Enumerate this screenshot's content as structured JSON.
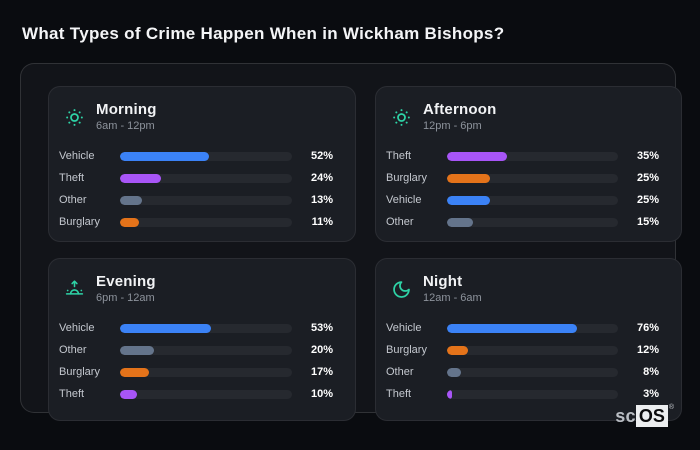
{
  "page": {
    "title": "What Types of Crime Happen When in Wickham Bishops?"
  },
  "colors": {
    "blue": "#3b82f6",
    "purple": "#a855f7",
    "slate": "#64748b",
    "orange": "#e4731a",
    "icon_teal": "#2ed3a6"
  },
  "panels": [
    {
      "title": "Morning",
      "time_range": "6am - 12pm",
      "icon": "sun-dotted-icon",
      "bars": [
        {
          "label": "Vehicle",
          "value": 52,
          "display": "52%",
          "color": "#3b82f6"
        },
        {
          "label": "Theft",
          "value": 24,
          "display": "24%",
          "color": "#a855f7"
        },
        {
          "label": "Other",
          "value": 13,
          "display": "13%",
          "color": "#64748b"
        },
        {
          "label": "Burglary",
          "value": 11,
          "display": "11%",
          "color": "#e4731a"
        }
      ]
    },
    {
      "title": "Afternoon",
      "time_range": "12pm - 6pm",
      "icon": "sun-dotted-icon",
      "bars": [
        {
          "label": "Theft",
          "value": 35,
          "display": "35%",
          "color": "#a855f7"
        },
        {
          "label": "Burglary",
          "value": 25,
          "display": "25%",
          "color": "#e4731a"
        },
        {
          "label": "Vehicle",
          "value": 25,
          "display": "25%",
          "color": "#3b82f6"
        },
        {
          "label": "Other",
          "value": 15,
          "display": "15%",
          "color": "#64748b"
        }
      ]
    },
    {
      "title": "Evening",
      "time_range": "6pm - 12am",
      "icon": "sunrise-icon",
      "bars": [
        {
          "label": "Vehicle",
          "value": 53,
          "display": "53%",
          "color": "#3b82f6"
        },
        {
          "label": "Other",
          "value": 20,
          "display": "20%",
          "color": "#64748b"
        },
        {
          "label": "Burglary",
          "value": 17,
          "display": "17%",
          "color": "#e4731a"
        },
        {
          "label": "Theft",
          "value": 10,
          "display": "10%",
          "color": "#a855f7"
        }
      ]
    },
    {
      "title": "Night",
      "time_range": "12am - 6am",
      "icon": "moon-icon",
      "bars": [
        {
          "label": "Vehicle",
          "value": 76,
          "display": "76%",
          "color": "#3b82f6"
        },
        {
          "label": "Burglary",
          "value": 12,
          "display": "12%",
          "color": "#e4731a"
        },
        {
          "label": "Other",
          "value": 8,
          "display": "8%",
          "color": "#64748b"
        },
        {
          "label": "Theft",
          "value": 3,
          "display": "3%",
          "color": "#a855f7"
        }
      ]
    }
  ],
  "watermark": {
    "prefix": "sc",
    "brand": "OS",
    "registered": "®"
  },
  "chart_data": [
    {
      "type": "bar",
      "orientation": "horizontal",
      "title": "Morning",
      "subtitle": "6am - 12pm",
      "categories": [
        "Vehicle",
        "Theft",
        "Other",
        "Burglary"
      ],
      "values": [
        52,
        24,
        13,
        11
      ],
      "unit": "%",
      "xlim": [
        0,
        100
      ],
      "grid": false,
      "legend": false
    },
    {
      "type": "bar",
      "orientation": "horizontal",
      "title": "Afternoon",
      "subtitle": "12pm - 6pm",
      "categories": [
        "Theft",
        "Burglary",
        "Vehicle",
        "Other"
      ],
      "values": [
        35,
        25,
        25,
        15
      ],
      "unit": "%",
      "xlim": [
        0,
        100
      ],
      "grid": false,
      "legend": false
    },
    {
      "type": "bar",
      "orientation": "horizontal",
      "title": "Evening",
      "subtitle": "6pm - 12am",
      "categories": [
        "Vehicle",
        "Other",
        "Burglary",
        "Theft"
      ],
      "values": [
        53,
        20,
        17,
        10
      ],
      "unit": "%",
      "xlim": [
        0,
        100
      ],
      "grid": false,
      "legend": false
    },
    {
      "type": "bar",
      "orientation": "horizontal",
      "title": "Night",
      "subtitle": "12am - 6am",
      "categories": [
        "Vehicle",
        "Burglary",
        "Other",
        "Theft"
      ],
      "values": [
        76,
        12,
        8,
        3
      ],
      "unit": "%",
      "xlim": [
        0,
        100
      ],
      "grid": false,
      "legend": false
    }
  ]
}
